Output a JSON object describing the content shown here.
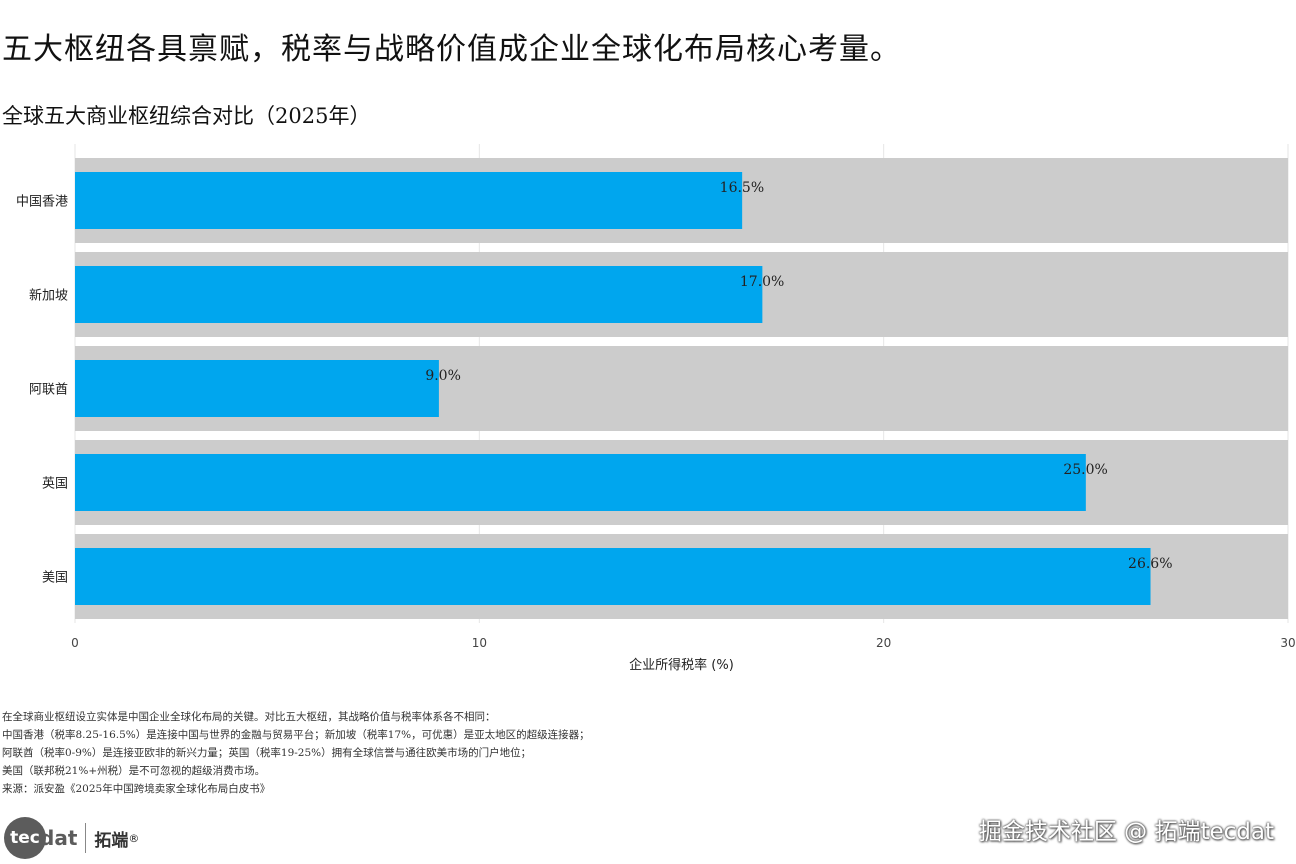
{
  "headline": "五大枢纽各具禀赋，税率与战略价值成企业全球化布局核心考量。",
  "subtitle": "全球五大商业枢纽综合对比（2025年）",
  "chart_data": {
    "type": "bar",
    "orientation": "horizontal",
    "categories": [
      "中国香港",
      "新加坡",
      "阿联酋",
      "英国",
      "美国"
    ],
    "values": [
      16.5,
      17.0,
      9.0,
      25.0,
      26.6
    ],
    "value_labels": [
      "16.5%",
      "17.0%",
      "9.0%",
      "25.0%",
      "26.6%"
    ],
    "background_max": 30,
    "xlabel": "企业所得税率 (%)",
    "xlim": [
      0,
      30
    ],
    "xticks": [
      0,
      10,
      20,
      30
    ],
    "grid": true,
    "colors": {
      "bar": "#00a6ee",
      "background_bar": "#cccccc",
      "grid": "#e6e6e6"
    }
  },
  "notes": [
    "在全球商业枢纽设立实体是中国企业全球化布局的关键。对比五大枢纽，其战略价值与税率体系各不相同：",
    "中国香港（税率8.25-16.5%）是连接中国与世界的金融与贸易平台；新加坡（税率17%，可优惠）是亚太地区的超级连接器；",
    "阿联酋（税率0-9%）是连接亚欧非的新兴力量；英国（税率19-25%）拥有全球信誉与通往欧美市场的门户地位；",
    "美国（联邦税21%+州税）是不可忽视的超级消费市场。",
    "来源：派安盈《2025年中国跨境卖家全球化布局白皮书》"
  ],
  "logo": {
    "badge": "tec",
    "tail": "dat",
    "cn": "拓端",
    "reg": "®"
  },
  "watermark": "掘金技术社区 @ 拓端tecdat"
}
